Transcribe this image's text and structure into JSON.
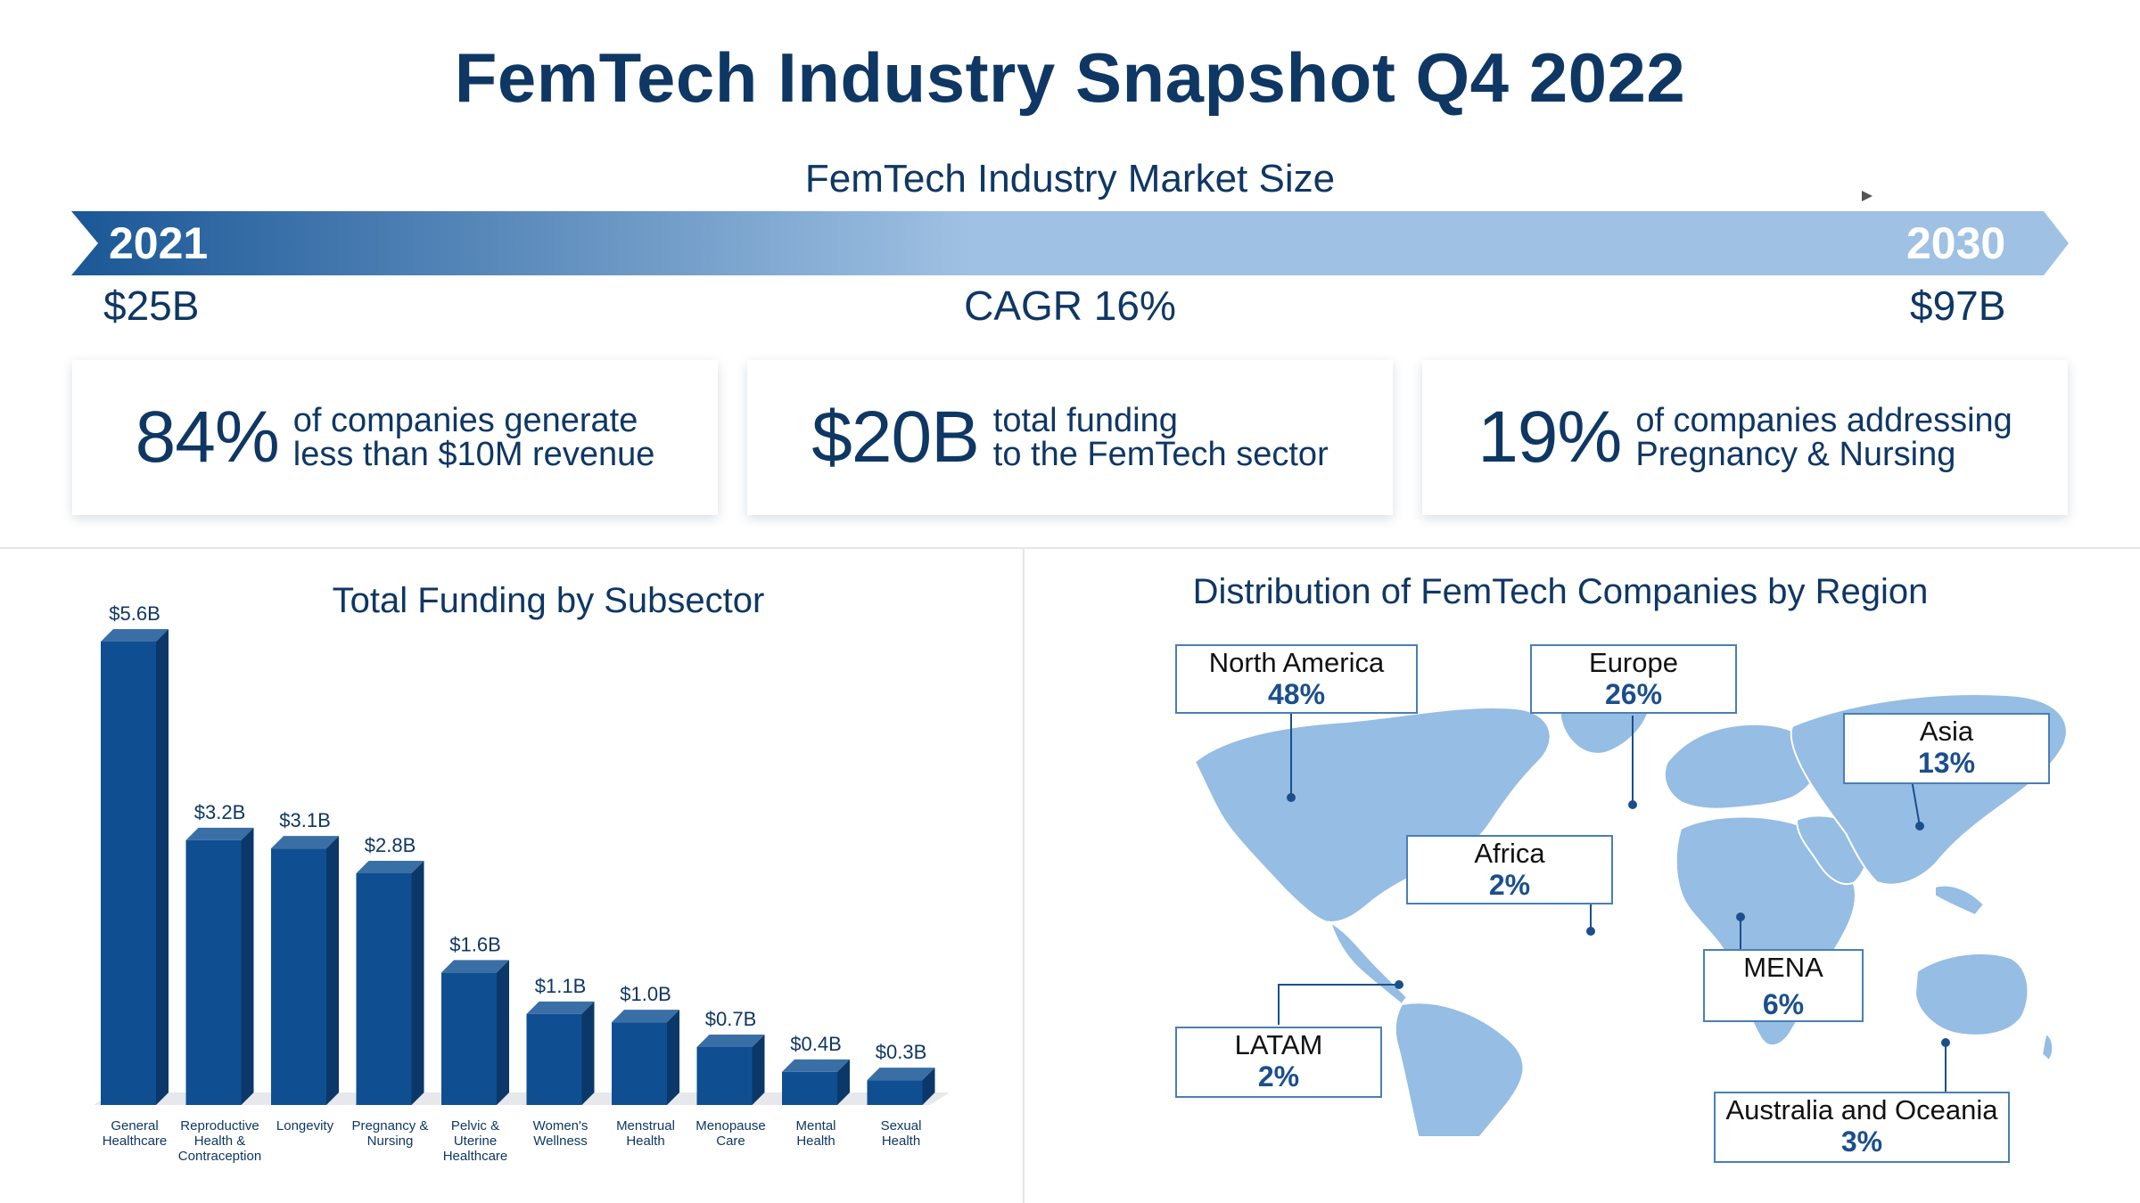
{
  "title": "FemTech Industry Snapshot Q4 2022",
  "market": {
    "title": "FemTech Industry Market Size",
    "start_year": "2021",
    "end_year": "2030",
    "start_value": "$25B",
    "end_value": "$97B",
    "cagr": "CAGR 16%"
  },
  "stats": [
    {
      "number": "84%",
      "line1": "of companies generate",
      "line2": "less than $10M revenue"
    },
    {
      "number": "$20B",
      "line1": "total funding",
      "line2": "to the FemTech sector"
    },
    {
      "number": "19%",
      "line1": "of companies addressing",
      "line2": "Pregnancy & Nursing"
    }
  ],
  "funding_title": "Total Funding by Subsector",
  "region_title": "Distribution of FemTech Companies by Region",
  "chart_data": [
    {
      "type": "bar",
      "title": "Total Funding by Subsector",
      "categories": [
        [
          "General",
          "Healthcare"
        ],
        [
          "Reproductive",
          "Health &",
          "Contraception"
        ],
        [
          "Longevity"
        ],
        [
          "Pregnancy &",
          "Nursing"
        ],
        [
          "Pelvic &",
          "Uterine",
          "Healthcare"
        ],
        [
          "Women's",
          "Wellness"
        ],
        [
          "Menstrual",
          "Health"
        ],
        [
          "Menopause",
          "Care"
        ],
        [
          "Mental",
          "Health"
        ],
        [
          "Sexual",
          "Health"
        ]
      ],
      "values": [
        5.6,
        3.2,
        3.1,
        2.8,
        1.6,
        1.1,
        1.0,
        0.7,
        0.4,
        0.3
      ],
      "labels": [
        "$5.6B",
        "$3.2B",
        "$3.1B",
        "$2.8B",
        "$1.6B",
        "$1.1B",
        "$1.0B",
        "$0.7B",
        "$0.4B",
        "$0.3B"
      ],
      "ylim": [
        0,
        5.6
      ],
      "grid": false,
      "colors": {
        "front": "#0f4f91",
        "top": "#3a6fa6",
        "side": "#0b3869"
      }
    },
    {
      "type": "table",
      "title": "Distribution of FemTech Companies by Region",
      "regions": [
        {
          "name": "North America",
          "value": "48%"
        },
        {
          "name": "Europe",
          "value": "26%"
        },
        {
          "name": "Asia",
          "value": "13%"
        },
        {
          "name": "Africa",
          "value": "2%"
        },
        {
          "name": "MENA",
          "value": "6%"
        },
        {
          "name": "LATAM",
          "value": "2%"
        },
        {
          "name": "Australia and Oceania",
          "value": "3%"
        }
      ]
    }
  ],
  "colors": {
    "navy": "#0f3764",
    "bar_dark": "#1a5796",
    "bar_light": "#9fc1e3",
    "map": "#96bde3",
    "callout_border": "#4a7fb5"
  }
}
